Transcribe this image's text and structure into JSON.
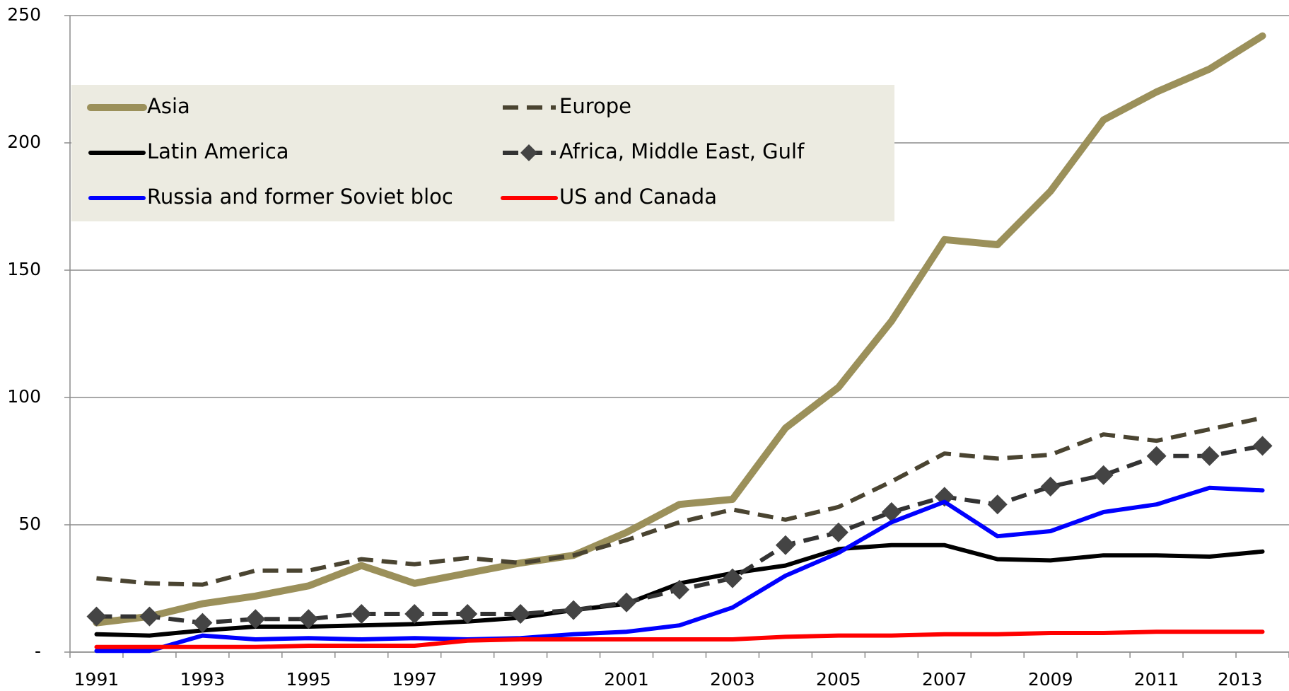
{
  "chart_data": {
    "type": "line",
    "categories": [
      "1991",
      null,
      "1993",
      null,
      "1995",
      null,
      "1997",
      null,
      "1999",
      null,
      "2001",
      null,
      "2003",
      null,
      "2005",
      null,
      "2007",
      null,
      "2009",
      null,
      "2011",
      null,
      "2013"
    ],
    "series": [
      {
        "name": "Asia",
        "color": "#9b905a",
        "values": [
          11.5,
          14,
          19,
          22,
          26,
          34,
          27,
          31,
          35,
          38,
          47,
          58,
          60,
          88,
          104,
          130,
          162,
          160,
          181,
          209,
          220,
          229,
          242
        ]
      },
      {
        "name": "Europe",
        "color": "#4a4431",
        "dashed": true,
        "values": [
          29,
          27,
          26.5,
          32,
          32,
          36.5,
          34.5,
          37,
          35,
          38,
          44,
          51,
          56,
          52,
          57,
          67,
          78,
          76,
          77.5,
          85.5,
          83,
          87.5,
          92
        ]
      },
      {
        "name": "Latin America",
        "color": "#000000",
        "values": [
          7,
          6.5,
          8.5,
          10,
          10,
          10.5,
          11,
          12,
          13.5,
          16.5,
          19,
          27,
          31,
          34,
          40.5,
          42,
          42,
          36.5,
          36,
          38,
          38,
          37.5,
          39.5
        ]
      },
      {
        "name": "Africa, Middle East, Gulf",
        "color": "#333333",
        "dashed": true,
        "marker": "diamond",
        "values": [
          14,
          14,
          11.5,
          13,
          13,
          15,
          15,
          15,
          15,
          16.5,
          19.5,
          24.5,
          29,
          42,
          47,
          55,
          61,
          58,
          65,
          69.5,
          77,
          77,
          81
        ]
      },
      {
        "name": "Russia and former Soviet bloc",
        "color": "#0000ff",
        "values": [
          0.5,
          0.5,
          6.5,
          5,
          5.5,
          5,
          5.5,
          5,
          5.5,
          7,
          8,
          10.5,
          17.5,
          30,
          39,
          51,
          59,
          45.5,
          47.5,
          55,
          58,
          64.5,
          63.5
        ]
      },
      {
        "name": "US and Canada",
        "color": "#ff0000",
        "values": [
          2,
          2,
          2,
          2,
          2.5,
          2.5,
          2.5,
          4.5,
          5,
          5,
          5,
          5,
          5,
          6,
          6.5,
          6.5,
          7,
          7,
          7.5,
          7.5,
          8,
          8,
          8
        ]
      }
    ],
    "ylim": [
      0,
      250
    ],
    "yticks": [
      {
        "value": 0,
        "label": "-"
      },
      50,
      100,
      150,
      200,
      250
    ],
    "grid": true,
    "legend": "upper left",
    "legend_background": "#ecebe1"
  }
}
